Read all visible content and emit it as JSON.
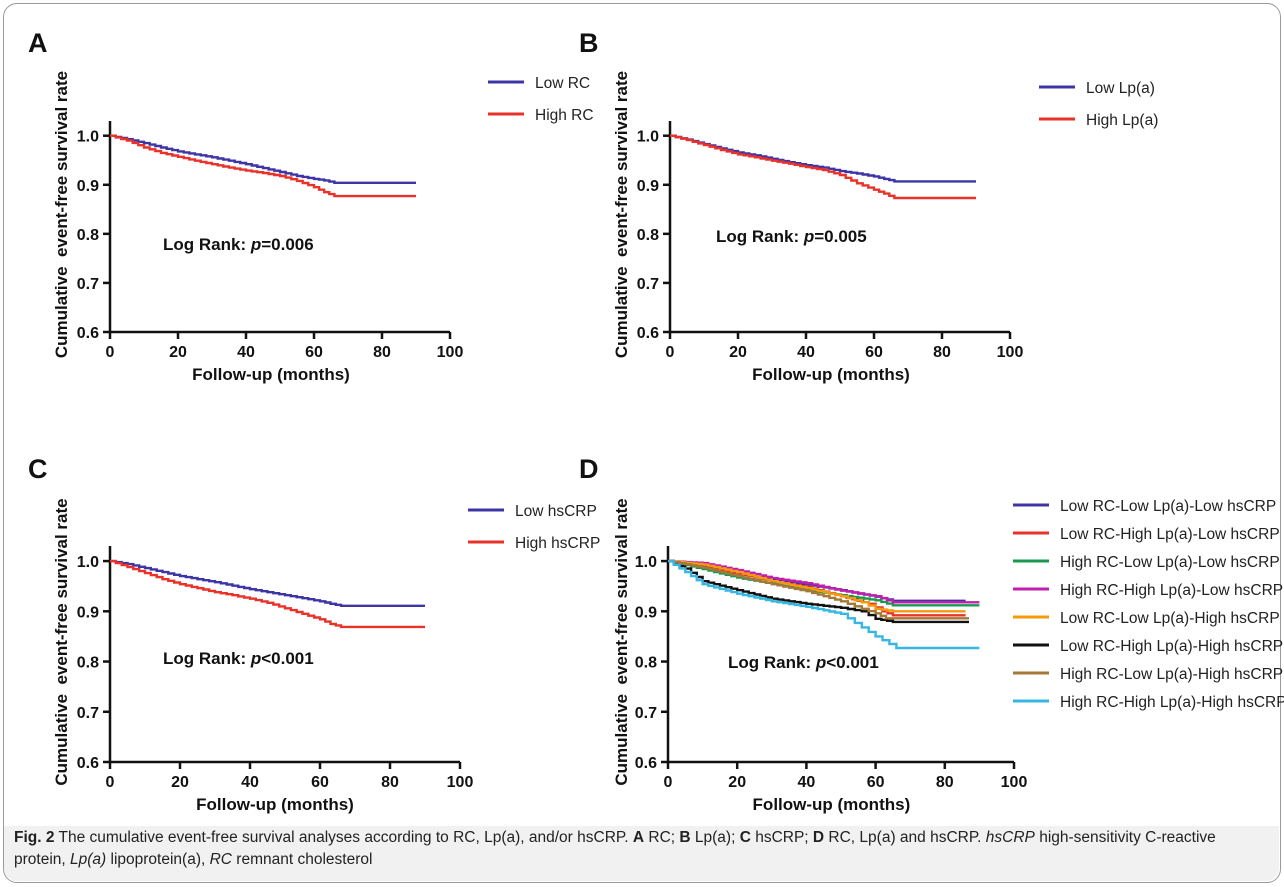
{
  "chart_data": [
    {
      "panel": "A",
      "type": "line",
      "xlabel": "Follow-up (months)",
      "ylabel": "Cumulative  event-free survival rate",
      "xlim": [
        0,
        100
      ],
      "ylim": [
        0.6,
        1.03
      ],
      "xticks": [
        "0",
        "20",
        "40",
        "60",
        "80",
        "100"
      ],
      "yticks": [
        "0.6",
        "0.7",
        "0.8",
        "0.9",
        "1.0"
      ],
      "legend_position": "top-right",
      "annotation": {
        "prefix": "Log Rank: ",
        "p": "p",
        "rest": "=0.006"
      },
      "series": [
        {
          "name": "Low RC",
          "color": "#3d35a6",
          "points": [
            [
              0,
              1.0
            ],
            [
              5,
              0.993
            ],
            [
              10,
              0.985
            ],
            [
              15,
              0.976
            ],
            [
              20,
              0.968
            ],
            [
              25,
              0.962
            ],
            [
              30,
              0.956
            ],
            [
              35,
              0.949
            ],
            [
              40,
              0.942
            ],
            [
              45,
              0.934
            ],
            [
              50,
              0.926
            ],
            [
              55,
              0.918
            ],
            [
              60,
              0.912
            ],
            [
              63,
              0.909
            ],
            [
              66,
              0.904
            ],
            [
              90,
              0.904
            ]
          ]
        },
        {
          "name": "High RC",
          "color": "#e8322a",
          "points": [
            [
              0,
              1.0
            ],
            [
              5,
              0.99
            ],
            [
              10,
              0.976
            ],
            [
              15,
              0.965
            ],
            [
              20,
              0.957
            ],
            [
              25,
              0.949
            ],
            [
              30,
              0.942
            ],
            [
              35,
              0.935
            ],
            [
              40,
              0.929
            ],
            [
              45,
              0.924
            ],
            [
              50,
              0.918
            ],
            [
              55,
              0.908
            ],
            [
              60,
              0.895
            ],
            [
              63,
              0.885
            ],
            [
              66,
              0.877
            ],
            [
              90,
              0.877
            ]
          ]
        }
      ]
    },
    {
      "panel": "B",
      "type": "line",
      "xlabel": "Follow-up (months)",
      "ylabel": "Cumulative  event-free survival rate",
      "xlim": [
        0,
        100
      ],
      "ylim": [
        0.6,
        1.03
      ],
      "xticks": [
        "0",
        "20",
        "40",
        "60",
        "80",
        "100"
      ],
      "yticks": [
        "0.6",
        "0.7",
        "0.8",
        "0.9",
        "1.0"
      ],
      "legend_position": "top-right",
      "annotation": {
        "prefix": "Log Rank: ",
        "p": "p",
        "rest": "=0.005"
      },
      "series": [
        {
          "name": "Low Lp(a)",
          "color": "#3d35a6",
          "points": [
            [
              0,
              1.0
            ],
            [
              5,
              0.992
            ],
            [
              10,
              0.983
            ],
            [
              15,
              0.974
            ],
            [
              20,
              0.966
            ],
            [
              25,
              0.96
            ],
            [
              30,
              0.953
            ],
            [
              35,
              0.946
            ],
            [
              40,
              0.94
            ],
            [
              45,
              0.935
            ],
            [
              50,
              0.928
            ],
            [
              55,
              0.923
            ],
            [
              60,
              0.917
            ],
            [
              63,
              0.912
            ],
            [
              66,
              0.907
            ],
            [
              90,
              0.907
            ]
          ]
        },
        {
          "name": "High Lp(a)",
          "color": "#e8322a",
          "points": [
            [
              0,
              1.0
            ],
            [
              5,
              0.991
            ],
            [
              10,
              0.981
            ],
            [
              15,
              0.971
            ],
            [
              20,
              0.962
            ],
            [
              25,
              0.956
            ],
            [
              30,
              0.949
            ],
            [
              35,
              0.943
            ],
            [
              40,
              0.936
            ],
            [
              45,
              0.93
            ],
            [
              50,
              0.92
            ],
            [
              55,
              0.903
            ],
            [
              60,
              0.89
            ],
            [
              63,
              0.882
            ],
            [
              66,
              0.873
            ],
            [
              90,
              0.873
            ]
          ]
        }
      ]
    },
    {
      "panel": "C",
      "type": "line",
      "xlabel": "Follow-up (months)",
      "ylabel": "Cumulative  event-free survival rate",
      "xlim": [
        0,
        100
      ],
      "ylim": [
        0.6,
        1.03
      ],
      "xticks": [
        "0",
        "20",
        "40",
        "60",
        "80",
        "100"
      ],
      "yticks": [
        "0.6",
        "0.7",
        "0.8",
        "0.9",
        "1.0"
      ],
      "legend_position": "top-right",
      "annotation": {
        "prefix": "Log Rank: ",
        "p": "p",
        "rest": "<0.001"
      },
      "series": [
        {
          "name": "Low hsCRP",
          "color": "#3d35a6",
          "points": [
            [
              0,
              1.0
            ],
            [
              5,
              0.994
            ],
            [
              10,
              0.986
            ],
            [
              15,
              0.978
            ],
            [
              20,
              0.97
            ],
            [
              25,
              0.964
            ],
            [
              30,
              0.958
            ],
            [
              35,
              0.951
            ],
            [
              40,
              0.944
            ],
            [
              45,
              0.938
            ],
            [
              50,
              0.932
            ],
            [
              55,
              0.926
            ],
            [
              60,
              0.92
            ],
            [
              63,
              0.915
            ],
            [
              66,
              0.911
            ],
            [
              90,
              0.911
            ]
          ]
        },
        {
          "name": "High hsCRP",
          "color": "#e8322a",
          "points": [
            [
              0,
              1.0
            ],
            [
              5,
              0.988
            ],
            [
              10,
              0.976
            ],
            [
              15,
              0.964
            ],
            [
              20,
              0.954
            ],
            [
              25,
              0.946
            ],
            [
              30,
              0.938
            ],
            [
              35,
              0.932
            ],
            [
              40,
              0.925
            ],
            [
              45,
              0.917
            ],
            [
              50,
              0.906
            ],
            [
              55,
              0.895
            ],
            [
              60,
              0.884
            ],
            [
              63,
              0.875
            ],
            [
              66,
              0.869
            ],
            [
              90,
              0.869
            ]
          ]
        }
      ]
    },
    {
      "panel": "D",
      "type": "line",
      "xlabel": "Follow-up (months)",
      "ylabel": "Cumulative  event-free survival rate",
      "xlim": [
        0,
        100
      ],
      "ylim": [
        0.6,
        1.03
      ],
      "xticks": [
        "0",
        "20",
        "40",
        "60",
        "80",
        "100"
      ],
      "yticks": [
        "0.6",
        "0.7",
        "0.8",
        "0.9",
        "1.0"
      ],
      "legend_position": "right",
      "annotation": {
        "prefix": "Log Rank: ",
        "p": "p",
        "rest": "<0.001"
      },
      "series": [
        {
          "name": "Low RC-Low Lp(a)-Low hsCRP",
          "color": "#3d35a6",
          "points": [
            [
              0,
              1.0
            ],
            [
              10,
              0.99
            ],
            [
              20,
              0.975
            ],
            [
              30,
              0.963
            ],
            [
              40,
              0.953
            ],
            [
              50,
              0.942
            ],
            [
              60,
              0.929
            ],
            [
              65,
              0.921
            ],
            [
              86,
              0.921
            ]
          ]
        },
        {
          "name": "Low RC-High Lp(a)-Low hsCRP",
          "color": "#e8322a",
          "points": [
            [
              0,
              1.0
            ],
            [
              10,
              0.99
            ],
            [
              20,
              0.975
            ],
            [
              30,
              0.96
            ],
            [
              40,
              0.948
            ],
            [
              50,
              0.93
            ],
            [
              58,
              0.915
            ],
            [
              62,
              0.9
            ],
            [
              65,
              0.892
            ],
            [
              86,
              0.892
            ]
          ]
        },
        {
          "name": "High RC-Low Lp(a)-Low hsCRP",
          "color": "#1a9a50",
          "points": [
            [
              0,
              1.0
            ],
            [
              10,
              0.984
            ],
            [
              20,
              0.967
            ],
            [
              30,
              0.955
            ],
            [
              40,
              0.942
            ],
            [
              50,
              0.932
            ],
            [
              60,
              0.922
            ],
            [
              65,
              0.912
            ],
            [
              90,
              0.912
            ]
          ]
        },
        {
          "name": "High RC-High Lp(a)-Low hsCRP",
          "color": "#c01fae",
          "points": [
            [
              0,
              1.0
            ],
            [
              10,
              0.996
            ],
            [
              20,
              0.982
            ],
            [
              30,
              0.966
            ],
            [
              40,
              0.956
            ],
            [
              50,
              0.941
            ],
            [
              60,
              0.93
            ],
            [
              65,
              0.918
            ],
            [
              90,
              0.918
            ]
          ]
        },
        {
          "name": "Low RC-Low Lp(a)-High hsCRP",
          "color": "#f59a0c",
          "points": [
            [
              0,
              1.0
            ],
            [
              10,
              0.993
            ],
            [
              20,
              0.978
            ],
            [
              30,
              0.96
            ],
            [
              40,
              0.946
            ],
            [
              50,
              0.93
            ],
            [
              56,
              0.918
            ],
            [
              60,
              0.905
            ],
            [
              65,
              0.9
            ],
            [
              86,
              0.9
            ]
          ]
        },
        {
          "name": "Low RC-High Lp(a)-High hsCRP",
          "color": "#111111",
          "points": [
            [
              0,
              1.0
            ],
            [
              5,
              0.985
            ],
            [
              10,
              0.96
            ],
            [
              20,
              0.942
            ],
            [
              30,
              0.925
            ],
            [
              40,
              0.915
            ],
            [
              50,
              0.907
            ],
            [
              56,
              0.9
            ],
            [
              60,
              0.885
            ],
            [
              65,
              0.879
            ],
            [
              87,
              0.879
            ]
          ]
        },
        {
          "name": "High RC-Low Lp(a)-High hsCRP",
          "color": "#a37838",
          "points": [
            [
              0,
              1.0
            ],
            [
              10,
              0.987
            ],
            [
              20,
              0.97
            ],
            [
              30,
              0.954
            ],
            [
              40,
              0.94
            ],
            [
              50,
              0.92
            ],
            [
              56,
              0.905
            ],
            [
              60,
              0.896
            ],
            [
              63,
              0.886
            ],
            [
              87,
              0.886
            ]
          ]
        },
        {
          "name": "High RC-High Lp(a)-High hsCRP",
          "color": "#35b7e2",
          "points": [
            [
              0,
              1.0
            ],
            [
              5,
              0.978
            ],
            [
              10,
              0.954
            ],
            [
              20,
              0.935
            ],
            [
              30,
              0.92
            ],
            [
              40,
              0.909
            ],
            [
              50,
              0.895
            ],
            [
              56,
              0.868
            ],
            [
              60,
              0.85
            ],
            [
              64,
              0.835
            ],
            [
              66,
              0.827
            ],
            [
              90,
              0.827
            ]
          ]
        }
      ]
    }
  ],
  "caption": {
    "title": "Fig. 2",
    "text1": "  The cumulative event-free survival analyses according to RC, Lp(a), and/or hsCRP. ",
    "a": "A",
    "a_t": " RC; ",
    "b": "B",
    "b_t": " Lp(a); ",
    "c": "C",
    "c_t": " hsCRP; ",
    "d": "D",
    "d_t": " RC, Lp(a) and hsCRP. ",
    "hs": "hsCRP",
    "hs_t": " high-sensitivity C-reactive protein, ",
    "lp": "Lp(a)",
    "lp_t": " lipoprotein(a), ",
    "rc": "RC",
    "rc_t": " remnant cholesterol"
  }
}
